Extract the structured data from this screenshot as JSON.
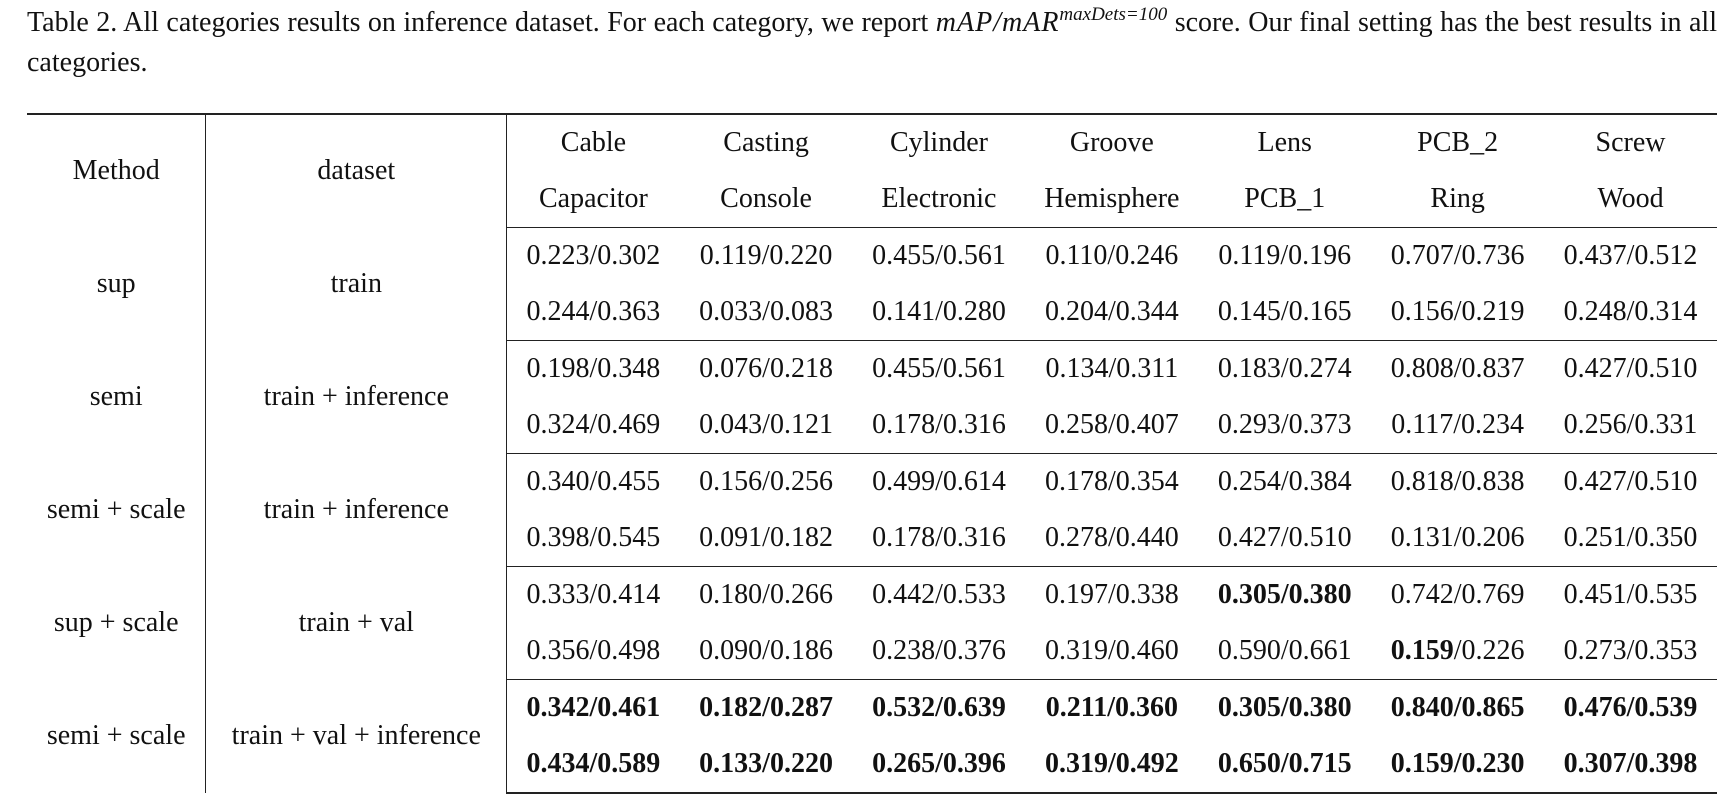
{
  "caption": {
    "label": "Table 2.",
    "text_before_metric": " All categories results on inference dataset. For each category, we report ",
    "metric": "mAP/mAR",
    "metric_superscript": "maxDets=100",
    "text_after_metric": " score. Our final setting has the best results in all categories."
  },
  "table": {
    "headers": {
      "method": "Method",
      "dataset": "dataset",
      "categories_top": [
        "Cable",
        "Casting",
        "Cylinder",
        "Groove",
        "Lens",
        "PCB_2",
        "Screw"
      ],
      "categories_bottom": [
        "Capacitor",
        "Console",
        "Electronic",
        "Hemisphere",
        "PCB_1",
        "Ring",
        "Wood"
      ]
    },
    "groups": [
      {
        "method": "sup",
        "dataset": "train",
        "rows": [
          [
            "0.223/0.302",
            "0.119/0.220",
            "0.455/0.561",
            "0.110/0.246",
            "0.119/0.196",
            "0.707/0.736",
            "0.437/0.512"
          ],
          [
            "0.244/0.363",
            "0.033/0.083",
            "0.141/0.280",
            "0.204/0.344",
            "0.145/0.165",
            "0.156/0.219",
            "0.248/0.314"
          ]
        ]
      },
      {
        "method": "semi",
        "dataset": "train + inference",
        "rows": [
          [
            "0.198/0.348",
            "0.076/0.218",
            "0.455/0.561",
            "0.134/0.311",
            "0.183/0.274",
            "0.808/0.837",
            "0.427/0.510"
          ],
          [
            "0.324/0.469",
            "0.043/0.121",
            "0.178/0.316",
            "0.258/0.407",
            "0.293/0.373",
            "0.117/0.234",
            "0.256/0.331"
          ]
        ]
      },
      {
        "method": "semi + scale",
        "dataset": "train + inference",
        "rows": [
          [
            "0.340/0.455",
            "0.156/0.256",
            "0.499/0.614",
            "0.178/0.354",
            "0.254/0.384",
            "0.818/0.838",
            "0.427/0.510"
          ],
          [
            "0.398/0.545",
            "0.091/0.182",
            "0.178/0.316",
            "0.278/0.440",
            "0.427/0.510",
            "0.131/0.206",
            "0.251/0.350"
          ]
        ]
      },
      {
        "method": "sup + scale",
        "dataset": "train + val",
        "rows": [
          [
            "0.333/0.414",
            "0.180/0.266",
            "0.442/0.533",
            "0.197/0.338",
            "0.305/0.380",
            "0.742/0.769",
            "0.451/0.535"
          ],
          [
            "0.356/0.498",
            "0.090/0.186",
            "0.238/0.376",
            "0.319/0.460",
            "0.590/0.661",
            "0.159/0.226",
            "0.273/0.353"
          ]
        ]
      },
      {
        "method": "semi + scale",
        "dataset": "train + val + inference",
        "rows": [
          [
            "0.342/0.461",
            "0.182/0.287",
            "0.532/0.639",
            "0.211/0.360",
            "0.305/0.380",
            "0.840/0.865",
            "0.476/0.539"
          ],
          [
            "0.434/0.589",
            "0.133/0.220",
            "0.265/0.396",
            "0.319/0.492",
            "0.650/0.715",
            "0.159/0.230",
            "0.307/0.398"
          ]
        ]
      }
    ]
  }
}
